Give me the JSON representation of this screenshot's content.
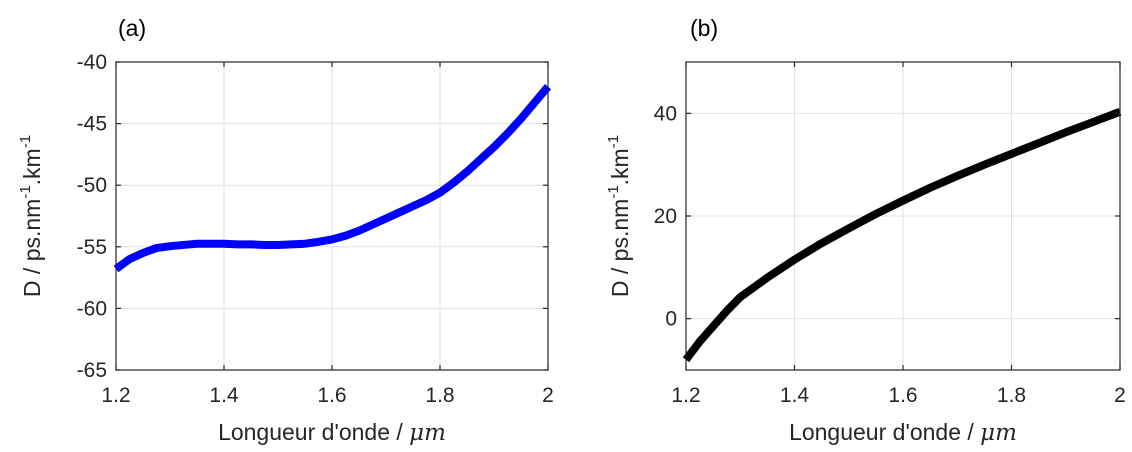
{
  "chart_data": [
    {
      "type": "line",
      "panel_label": "(a)",
      "xlabel_text": "Longueur d'onde / ",
      "xlabel_unit": "μm",
      "ylabel_text": "D / ps.nm",
      "ylabel_sup1": "-1",
      "ylabel_mid": ".km",
      "ylabel_sup2": "-1",
      "xlim": [
        1.2,
        2.0
      ],
      "ylim": [
        -65,
        -40
      ],
      "xticks": [
        1.2,
        1.4,
        1.6,
        1.8,
        2.0
      ],
      "xtick_labels": [
        "1.2",
        "1.4",
        "1.6",
        "1.8",
        "2"
      ],
      "yticks": [
        -65,
        -60,
        -55,
        -50,
        -45,
        -40
      ],
      "ytick_labels": [
        "-65",
        "-60",
        "-55",
        "-50",
        "-45",
        "-40"
      ],
      "grid": true,
      "series": [
        {
          "color": "#0000ff",
          "x": [
            1.2,
            1.225,
            1.25,
            1.275,
            1.3,
            1.325,
            1.35,
            1.375,
            1.4,
            1.425,
            1.45,
            1.475,
            1.5,
            1.525,
            1.55,
            1.575,
            1.6,
            1.625,
            1.65,
            1.675,
            1.7,
            1.725,
            1.75,
            1.775,
            1.8,
            1.825,
            1.85,
            1.875,
            1.9,
            1.925,
            1.95,
            1.975,
            2.0
          ],
          "y": [
            -56.8,
            -56.0,
            -55.5,
            -55.1,
            -54.95,
            -54.85,
            -54.75,
            -54.75,
            -54.75,
            -54.8,
            -54.8,
            -54.85,
            -54.85,
            -54.8,
            -54.75,
            -54.6,
            -54.4,
            -54.1,
            -53.7,
            -53.2,
            -52.7,
            -52.2,
            -51.7,
            -51.2,
            -50.6,
            -49.8,
            -48.9,
            -47.9,
            -46.9,
            -45.8,
            -44.6,
            -43.3,
            -42.0
          ]
        }
      ]
    },
    {
      "type": "line",
      "panel_label": "(b)",
      "xlabel_text": "Longueur d'onde / ",
      "xlabel_unit": "μm",
      "ylabel_text": "D / ps.nm",
      "ylabel_sup1": "-1",
      "ylabel_mid": ".km",
      "ylabel_sup2": "-1",
      "xlim": [
        1.2,
        2.0
      ],
      "ylim": [
        -10,
        50
      ],
      "xticks": [
        1.2,
        1.4,
        1.6,
        1.8,
        2.0
      ],
      "xtick_labels": [
        "1.2",
        "1.4",
        "1.6",
        "1.8",
        "2"
      ],
      "yticks": [
        0,
        20,
        40
      ],
      "ytick_labels": [
        "0",
        "20",
        "40"
      ],
      "grid": true,
      "series": [
        {
          "color": "#000000",
          "x": [
            1.2,
            1.225,
            1.25,
            1.275,
            1.3,
            1.35,
            1.4,
            1.45,
            1.5,
            1.55,
            1.6,
            1.65,
            1.7,
            1.75,
            1.8,
            1.85,
            1.9,
            1.95,
            2.0
          ],
          "y": [
            -8.0,
            -4.5,
            -1.5,
            1.5,
            4.2,
            8.0,
            11.5,
            14.7,
            17.6,
            20.4,
            23.0,
            25.5,
            27.8,
            30.0,
            32.1,
            34.2,
            36.3,
            38.3,
            40.3
          ]
        }
      ]
    }
  ]
}
